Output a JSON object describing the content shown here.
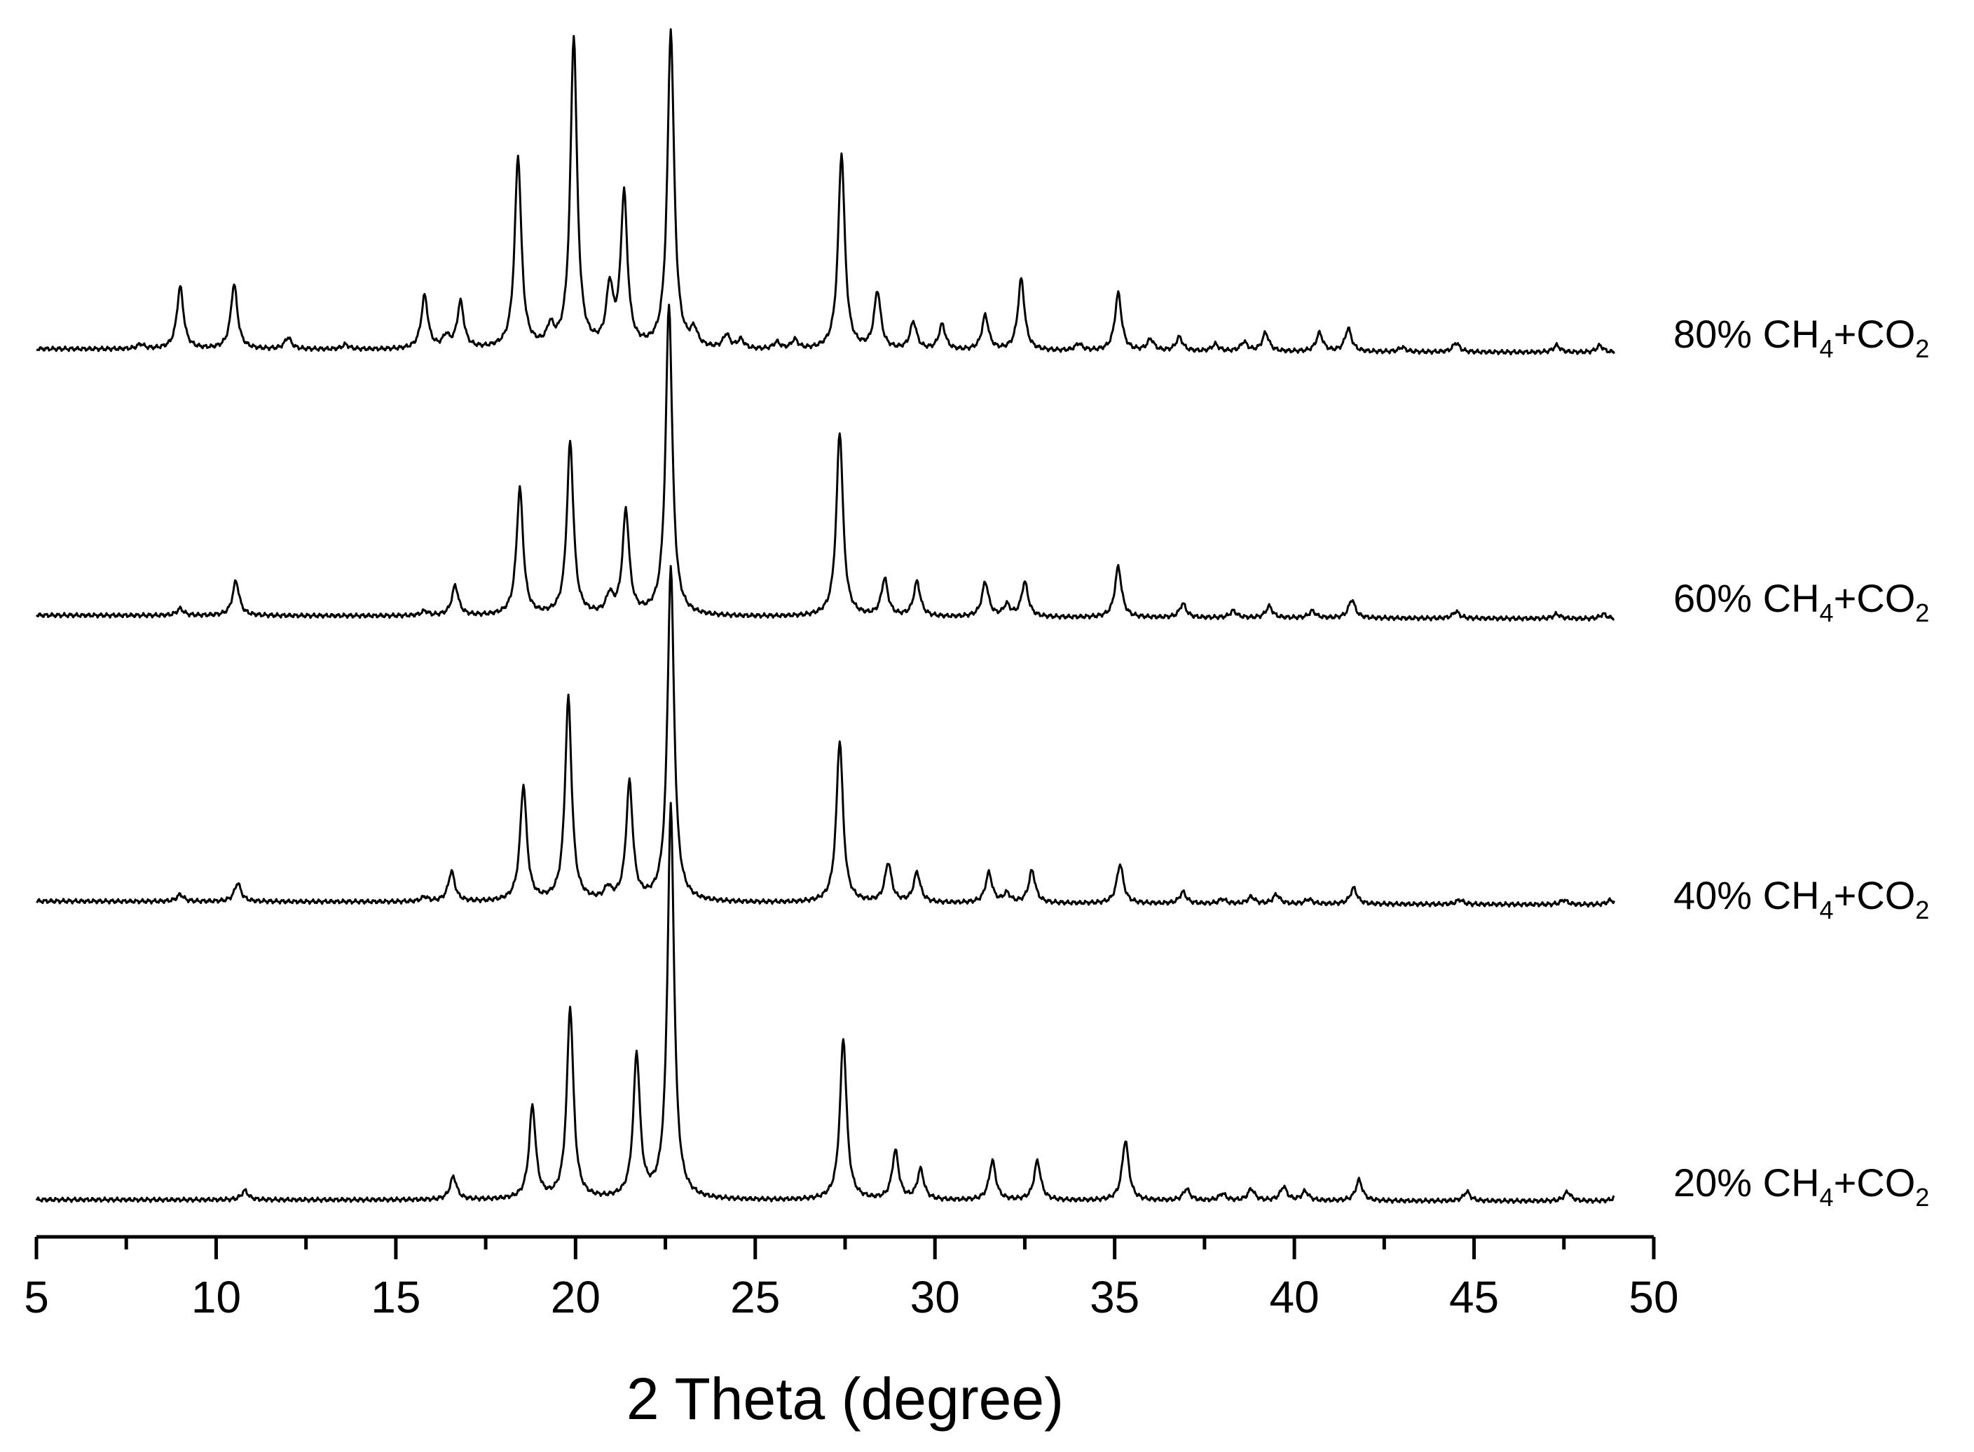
{
  "chart_data": {
    "type": "line",
    "title": "",
    "xlabel": "2 Theta (degree)",
    "ylabel": "",
    "xlim": [
      5,
      50
    ],
    "x_major_ticks": [
      5,
      10,
      15,
      20,
      25,
      30,
      35,
      40,
      45,
      50
    ],
    "x_minor_ticks": [
      7.5,
      12.5,
      17.5,
      22.5,
      27.5,
      32.5,
      37.5,
      42.5,
      47.5
    ],
    "y_axis_shown": false,
    "grid": false,
    "legend": "none (series labelled at right end of each trace)",
    "intensity_units": "relative",
    "series": [
      {
        "name": "80% CH4+CO2",
        "label_main": "80% CH",
        "label_sub1": "4",
        "label_mid": "+CO",
        "label_sub2": "2",
        "peaks": [
          [
            7.9,
            0.02
          ],
          [
            9.0,
            0.27
          ],
          [
            10.5,
            0.28
          ],
          [
            12.0,
            0.05
          ],
          [
            13.6,
            0.02
          ],
          [
            15.8,
            0.23
          ],
          [
            16.4,
            0.05
          ],
          [
            16.8,
            0.2
          ],
          [
            18.4,
            0.83
          ],
          [
            19.3,
            0.08
          ],
          [
            19.95,
            1.35
          ],
          [
            20.95,
            0.25
          ],
          [
            21.35,
            0.66
          ],
          [
            22.65,
            1.38
          ],
          [
            23.3,
            0.07
          ],
          [
            24.2,
            0.06
          ],
          [
            24.6,
            0.04
          ],
          [
            25.6,
            0.03
          ],
          [
            26.1,
            0.04
          ],
          [
            27.4,
            0.85
          ],
          [
            28.4,
            0.25
          ],
          [
            29.4,
            0.12
          ],
          [
            30.2,
            0.11
          ],
          [
            31.4,
            0.15
          ],
          [
            32.4,
            0.31
          ],
          [
            34.0,
            0.03
          ],
          [
            35.1,
            0.25
          ],
          [
            36.0,
            0.05
          ],
          [
            36.8,
            0.06
          ],
          [
            37.8,
            0.03
          ],
          [
            38.6,
            0.04
          ],
          [
            39.2,
            0.08
          ],
          [
            40.7,
            0.08
          ],
          [
            41.5,
            0.1
          ],
          [
            43.0,
            0.02
          ],
          [
            44.5,
            0.04
          ],
          [
            47.3,
            0.03
          ],
          [
            48.5,
            0.03
          ]
        ]
      },
      {
        "name": "60% CH4+CO2",
        "label_main": "60% CH",
        "label_sub1": "4",
        "label_mid": "+CO",
        "label_sub2": "2",
        "peaks": [
          [
            9.0,
            0.03
          ],
          [
            10.55,
            0.15
          ],
          [
            15.8,
            0.02
          ],
          [
            16.65,
            0.13
          ],
          [
            18.45,
            0.55
          ],
          [
            19.85,
            0.75
          ],
          [
            20.95,
            0.08
          ],
          [
            21.4,
            0.45
          ],
          [
            22.6,
            1.35
          ],
          [
            27.35,
            0.8
          ],
          [
            28.6,
            0.16
          ],
          [
            29.5,
            0.15
          ],
          [
            31.4,
            0.15
          ],
          [
            32.0,
            0.05
          ],
          [
            32.5,
            0.15
          ],
          [
            35.1,
            0.22
          ],
          [
            36.9,
            0.06
          ],
          [
            38.3,
            0.03
          ],
          [
            39.3,
            0.05
          ],
          [
            40.5,
            0.03
          ],
          [
            41.6,
            0.08
          ],
          [
            44.5,
            0.03
          ],
          [
            47.3,
            0.02
          ],
          [
            48.6,
            0.02
          ]
        ]
      },
      {
        "name": "40% CH4+CO2",
        "label_main": "40% CH",
        "label_sub1": "4",
        "label_mid": "+CO",
        "label_sub2": "2",
        "peaks": [
          [
            9.0,
            0.03
          ],
          [
            10.6,
            0.08
          ],
          [
            15.8,
            0.02
          ],
          [
            16.55,
            0.13
          ],
          [
            18.55,
            0.5
          ],
          [
            19.8,
            0.88
          ],
          [
            20.9,
            0.05
          ],
          [
            21.5,
            0.51
          ],
          [
            22.65,
            1.45
          ],
          [
            27.35,
            0.7
          ],
          [
            28.7,
            0.17
          ],
          [
            29.5,
            0.13
          ],
          [
            31.5,
            0.13
          ],
          [
            32.0,
            0.04
          ],
          [
            32.7,
            0.14
          ],
          [
            35.15,
            0.17
          ],
          [
            36.9,
            0.05
          ],
          [
            38.0,
            0.02
          ],
          [
            38.8,
            0.03
          ],
          [
            39.5,
            0.04
          ],
          [
            40.4,
            0.02
          ],
          [
            41.65,
            0.07
          ],
          [
            44.6,
            0.02
          ],
          [
            47.5,
            0.02
          ],
          [
            48.8,
            0.02
          ]
        ]
      },
      {
        "name": "20% CH4+CO2",
        "label_main": "20% CH",
        "label_sub1": "4",
        "label_mid": "+CO",
        "label_sub2": "2",
        "peaks": [
          [
            10.8,
            0.04
          ],
          [
            16.6,
            0.1
          ],
          [
            18.8,
            0.4
          ],
          [
            19.85,
            0.83
          ],
          [
            21.7,
            0.62
          ],
          [
            22.65,
            1.7
          ],
          [
            27.45,
            0.7
          ],
          [
            28.9,
            0.21
          ],
          [
            29.6,
            0.13
          ],
          [
            31.6,
            0.17
          ],
          [
            32.85,
            0.17
          ],
          [
            35.3,
            0.26
          ],
          [
            37.0,
            0.05
          ],
          [
            38.0,
            0.03
          ],
          [
            38.8,
            0.05
          ],
          [
            39.7,
            0.06
          ],
          [
            40.3,
            0.04
          ],
          [
            41.8,
            0.09
          ],
          [
            44.8,
            0.04
          ],
          [
            47.6,
            0.04
          ],
          [
            49.0,
            0.03
          ]
        ]
      }
    ]
  }
}
